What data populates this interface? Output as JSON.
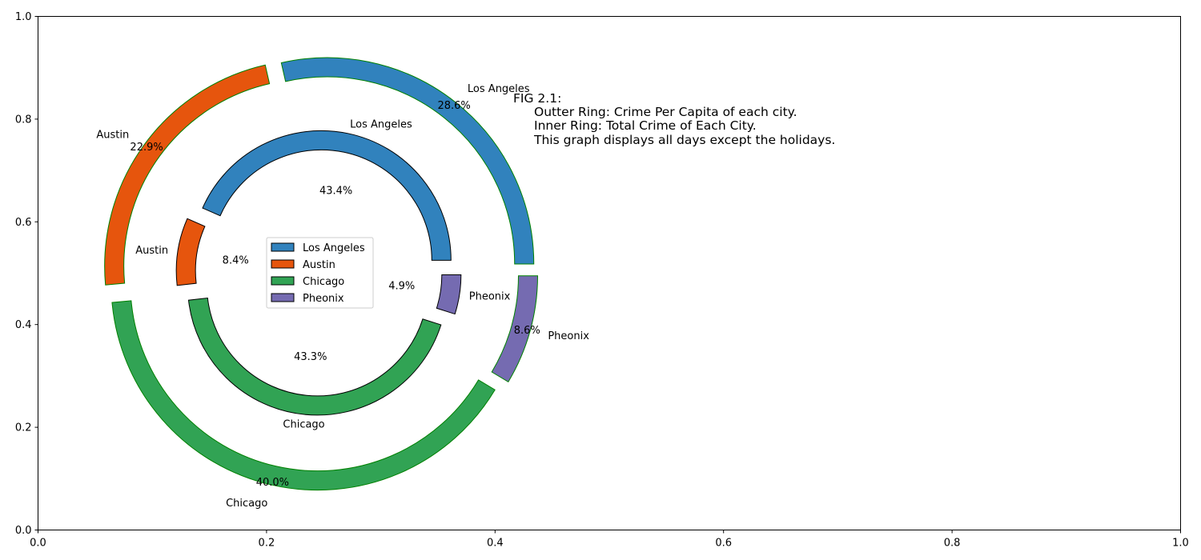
{
  "chart_data": {
    "type": "pie",
    "subtype": "nested-donut",
    "xlim": [
      0,
      1
    ],
    "ylim": [
      0,
      1
    ],
    "xticks": [
      "0.0",
      "0.2",
      "0.4",
      "0.6",
      "0.8",
      "1.0"
    ],
    "yticks": [
      "0.0",
      "0.2",
      "0.4",
      "0.6",
      "0.8",
      "1.0"
    ],
    "grid": false,
    "legend_position": "center of rings",
    "legend": [
      "Los Angeles",
      "Austin",
      "Chicago",
      "Pheonix"
    ],
    "colors": {
      "Los Angeles": "#3182bd",
      "Austin": "#e6550d",
      "Chicago": "#31a354",
      "Pheonix": "#756bb1",
      "outer_edge": "#008000",
      "inner_edge": "#000000"
    },
    "series": [
      {
        "ring": "outer",
        "labels": [
          "Los Angeles",
          "Austin",
          "Chicago",
          "Pheonix"
        ],
        "values": [
          28.6,
          22.9,
          40.0,
          8.6
        ],
        "pct_labels": [
          "28.6%",
          "22.9%",
          "40.0%",
          "8.6%"
        ]
      },
      {
        "ring": "inner",
        "labels": [
          "Los Angeles",
          "Austin",
          "Chicago",
          "Pheonix"
        ],
        "values": [
          43.4,
          8.4,
          43.3,
          4.9
        ],
        "pct_labels": [
          "43.4%",
          "8.4%",
          "43.3%",
          "4.9%"
        ]
      }
    ],
    "annotation": {
      "title": "FIG 2.1:",
      "lines": [
        "Outter Ring: Crime Per Capita of each city.",
        "Inner Ring: Total Crime of Each City.",
        "This graph displays all days except the holidays."
      ]
    }
  }
}
